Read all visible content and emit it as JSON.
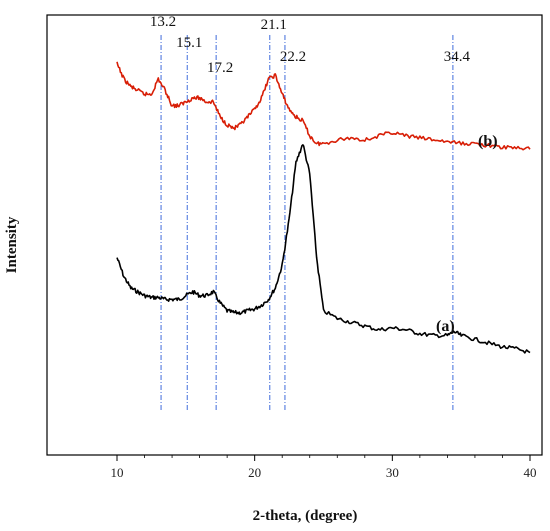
{
  "chart_data": {
    "type": "line",
    "xlabel": "2-theta, (degree)",
    "ylabel": "Intensity",
    "xlim": [
      10,
      40
    ],
    "ylim": [
      0,
      100
    ],
    "x_ticks": [
      "10",
      "20",
      "30",
      "40"
    ],
    "peaks": [
      "13.2",
      "15.1",
      "17.2",
      "21.1",
      "22.2",
      "34.4"
    ],
    "peak_x": [
      13.2,
      15.1,
      17.2,
      21.1,
      22.2,
      34.4
    ],
    "grid": false,
    "series": [
      {
        "name": "(a)",
        "color": "#000000",
        "x": [
          10,
          10.5,
          11,
          11.5,
          12,
          12.5,
          13,
          13.5,
          14,
          14.5,
          15,
          15.5,
          16,
          16.5,
          17,
          17.5,
          18,
          18.5,
          19,
          19.5,
          20,
          20.5,
          21,
          21.5,
          22,
          22.5,
          23,
          23.5,
          24,
          24.5,
          25,
          26,
          27,
          28,
          29,
          30,
          31,
          32,
          33,
          34,
          34.5,
          35,
          36,
          37,
          38,
          39,
          40
        ],
        "y": [
          48,
          43,
          40,
          39,
          38,
          37.5,
          37.5,
          37,
          37,
          37,
          38,
          39,
          38,
          38,
          39,
          36,
          34,
          33.5,
          33.5,
          34,
          34.5,
          35.5,
          37,
          40,
          46,
          58,
          73,
          78,
          70,
          48,
          34,
          32,
          31,
          30,
          29,
          29.5,
          29,
          28,
          27.5,
          27.5,
          28.5,
          27.5,
          26.5,
          25.5,
          24.5,
          24,
          23
        ]
      },
      {
        "name": "(b)",
        "color": "#d81e06",
        "x": [
          10,
          10.5,
          11,
          11.5,
          12,
          12.5,
          13,
          13.5,
          14,
          14.5,
          15,
          15.5,
          16,
          16.5,
          17,
          17.5,
          18,
          18.5,
          19,
          19.5,
          20,
          20.5,
          21,
          21.5,
          22,
          22.5,
          23,
          23.5,
          24,
          24.5,
          25,
          26,
          27,
          28,
          29,
          30,
          31,
          32,
          33,
          34,
          35,
          36,
          37,
          38,
          39,
          40
        ],
        "y": [
          99,
          95,
          93,
          92,
          91,
          91,
          95,
          92,
          88,
          88,
          89,
          90,
          90,
          89,
          89,
          85,
          83,
          82,
          83,
          85,
          87,
          90,
          95,
          96,
          91,
          87,
          85,
          84,
          80,
          78,
          78,
          79,
          79.5,
          79,
          80,
          81,
          80,
          79.5,
          79,
          78.5,
          78,
          78,
          77.5,
          77,
          77,
          76.5
        ]
      }
    ]
  }
}
